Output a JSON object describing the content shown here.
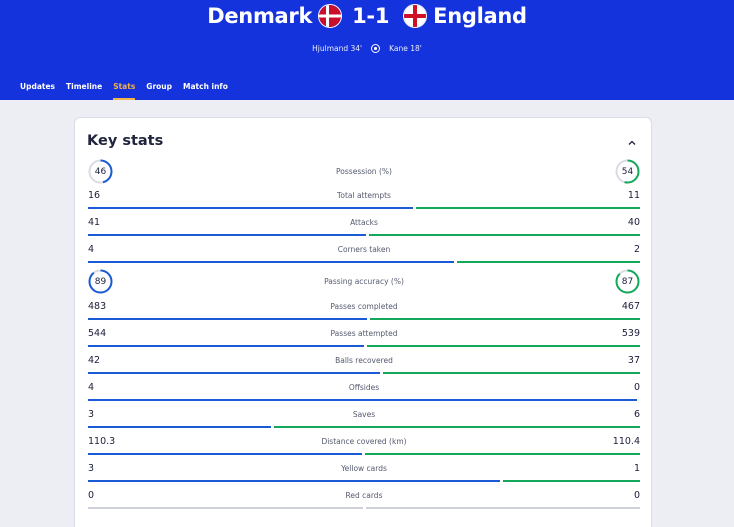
{
  "match": {
    "home_team": "Denmark",
    "away_team": "England",
    "score": "1-1",
    "home_scorer": "Hjulmand 34'",
    "away_scorer": "Kane 18'"
  },
  "tabs": [
    {
      "label": "Updates",
      "active": false
    },
    {
      "label": "Timeline",
      "active": false
    },
    {
      "label": "Stats",
      "active": true
    },
    {
      "label": "Group",
      "active": false
    },
    {
      "label": "Match info",
      "active": false
    }
  ],
  "card": {
    "title": "Key stats"
  },
  "colors": {
    "home": "#1a5ad6",
    "away": "#14a85a",
    "header": "#1533dc",
    "active_tab": "#f4b24a"
  },
  "rings": [
    {
      "label": "Possession (%)",
      "home": "46",
      "away": "54"
    },
    {
      "label": "Passing accuracy (%)",
      "home": "89",
      "away": "87"
    }
  ],
  "stats": [
    {
      "label": "Total attempts",
      "home": "16",
      "away": "11"
    },
    {
      "label": "Attacks",
      "home": "41",
      "away": "40"
    },
    {
      "label": "Corners taken",
      "home": "4",
      "away": "2"
    },
    {
      "label": "Passes completed",
      "home": "483",
      "away": "467"
    },
    {
      "label": "Passes attempted",
      "home": "544",
      "away": "539"
    },
    {
      "label": "Balls recovered",
      "home": "42",
      "away": "37"
    },
    {
      "label": "Offsides",
      "home": "4",
      "away": "0"
    },
    {
      "label": "Saves",
      "home": "3",
      "away": "6"
    },
    {
      "label": "Distance covered (km)",
      "home": "110.3",
      "away": "110.4"
    },
    {
      "label": "Yellow cards",
      "home": "3",
      "away": "1"
    },
    {
      "label": "Red cards",
      "home": "0",
      "away": "0"
    }
  ]
}
